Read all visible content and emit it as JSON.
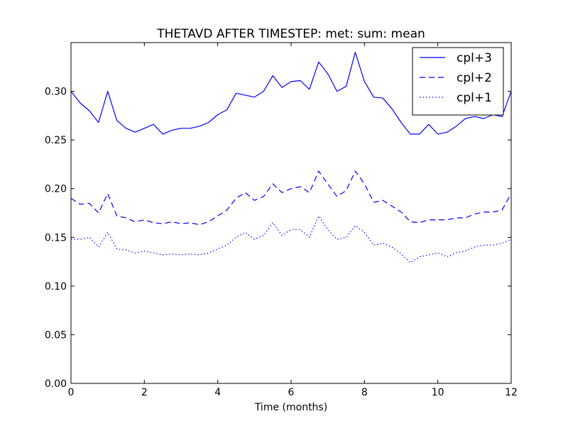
{
  "chart_data": {
    "type": "line",
    "title": "THETAVD AFTER TIMESTEP: met: sum: mean",
    "xlabel": "Time (months)",
    "ylabel": "",
    "xlim": [
      0,
      12
    ],
    "ylim": [
      0,
      0.35
    ],
    "xticks": [
      0,
      2,
      4,
      6,
      8,
      10,
      12
    ],
    "xtick_labels": [
      "0",
      "2",
      "4",
      "6",
      "8",
      "10",
      "12"
    ],
    "yticks": [
      0.0,
      0.05,
      0.1,
      0.15,
      0.2,
      0.25,
      0.3
    ],
    "ytick_labels": [
      "0.00",
      "0.05",
      "0.10",
      "0.15",
      "0.20",
      "0.25",
      "0.30"
    ],
    "grid": false,
    "legend_position": "top-right",
    "color": "#0000ff",
    "series": [
      {
        "name": "cpl+3",
        "style": "solid",
        "x": [
          0,
          0.25,
          0.5,
          0.75,
          1.0,
          1.25,
          1.5,
          1.75,
          2.0,
          2.25,
          2.5,
          2.75,
          3.0,
          3.25,
          3.5,
          3.75,
          4.0,
          4.25,
          4.5,
          4.75,
          5.0,
          5.25,
          5.5,
          5.75,
          6.0,
          6.25,
          6.5,
          6.75,
          7.0,
          7.25,
          7.5,
          7.75,
          8.0,
          8.25,
          8.5,
          8.75,
          9.0,
          9.25,
          9.5,
          9.75,
          10.0,
          10.25,
          10.5,
          10.75,
          11.0,
          11.25,
          11.5,
          11.75,
          12.0
        ],
        "y": [
          0.3,
          0.288,
          0.28,
          0.268,
          0.3,
          0.27,
          0.262,
          0.258,
          0.262,
          0.266,
          0.256,
          0.26,
          0.262,
          0.262,
          0.264,
          0.268,
          0.276,
          0.281,
          0.298,
          0.296,
          0.294,
          0.3,
          0.316,
          0.304,
          0.31,
          0.311,
          0.302,
          0.33,
          0.318,
          0.3,
          0.305,
          0.34,
          0.31,
          0.294,
          0.293,
          0.282,
          0.268,
          0.256,
          0.256,
          0.266,
          0.256,
          0.258,
          0.264,
          0.272,
          0.274,
          0.272,
          0.276,
          0.274,
          0.3
        ]
      },
      {
        "name": "cpl+2",
        "style": "dashed",
        "x": [
          0,
          0.25,
          0.5,
          0.75,
          1.0,
          1.25,
          1.5,
          1.75,
          2.0,
          2.25,
          2.5,
          2.75,
          3.0,
          3.25,
          3.5,
          3.75,
          4.0,
          4.25,
          4.5,
          4.75,
          5.0,
          5.25,
          5.5,
          5.75,
          6.0,
          6.25,
          6.5,
          6.75,
          7.0,
          7.25,
          7.5,
          7.75,
          8.0,
          8.25,
          8.5,
          8.75,
          9.0,
          9.25,
          9.5,
          9.75,
          10.0,
          10.25,
          10.5,
          10.75,
          11.0,
          11.25,
          11.5,
          11.75,
          12.0
        ],
        "y": [
          0.19,
          0.184,
          0.185,
          0.175,
          0.195,
          0.172,
          0.17,
          0.166,
          0.168,
          0.165,
          0.164,
          0.166,
          0.164,
          0.165,
          0.163,
          0.166,
          0.172,
          0.178,
          0.19,
          0.196,
          0.188,
          0.192,
          0.205,
          0.196,
          0.2,
          0.202,
          0.196,
          0.218,
          0.205,
          0.192,
          0.198,
          0.218,
          0.205,
          0.186,
          0.188,
          0.182,
          0.176,
          0.166,
          0.165,
          0.168,
          0.168,
          0.168,
          0.17,
          0.17,
          0.174,
          0.176,
          0.176,
          0.178,
          0.195
        ]
      },
      {
        "name": "cpl+1",
        "style": "dotted",
        "x": [
          0,
          0.25,
          0.5,
          0.75,
          1.0,
          1.25,
          1.5,
          1.75,
          2.0,
          2.25,
          2.5,
          2.75,
          3.0,
          3.25,
          3.5,
          3.75,
          4.0,
          4.25,
          4.5,
          4.75,
          5.0,
          5.25,
          5.5,
          5.75,
          6.0,
          6.25,
          6.5,
          6.75,
          7.0,
          7.25,
          7.5,
          7.75,
          8.0,
          8.25,
          8.5,
          8.75,
          9.0,
          9.25,
          9.5,
          9.75,
          10.0,
          10.25,
          10.5,
          10.75,
          11.0,
          11.25,
          11.5,
          11.75,
          12.0
        ],
        "y": [
          0.148,
          0.148,
          0.15,
          0.14,
          0.155,
          0.138,
          0.137,
          0.134,
          0.136,
          0.134,
          0.132,
          0.133,
          0.132,
          0.133,
          0.132,
          0.134,
          0.138,
          0.142,
          0.15,
          0.155,
          0.148,
          0.152,
          0.165,
          0.152,
          0.158,
          0.158,
          0.15,
          0.172,
          0.158,
          0.148,
          0.15,
          0.162,
          0.155,
          0.142,
          0.144,
          0.14,
          0.133,
          0.124,
          0.13,
          0.132,
          0.134,
          0.13,
          0.134,
          0.136,
          0.14,
          0.142,
          0.142,
          0.144,
          0.148
        ]
      }
    ]
  }
}
